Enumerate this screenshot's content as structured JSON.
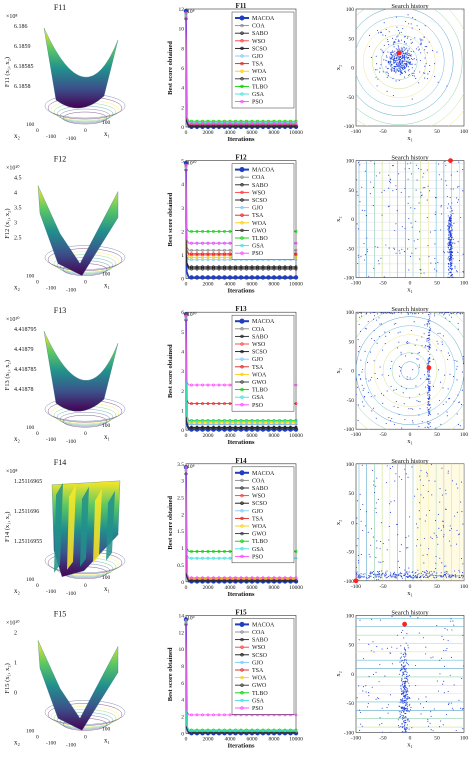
{
  "figure": {
    "rows": [
      {
        "surface": {
          "title": "F11",
          "exponent": "×10⁸",
          "zlabel": "F11 (x₁, x₂)",
          "zticks": [
            "6.186",
            "6.1859",
            "6.18585",
            "6.1858"
          ],
          "x2label": "x₂",
          "x1label": "x₁",
          "xticks_left": [
            "100",
            "0",
            "-100"
          ],
          "xticks_right": [
            "-100",
            "0",
            "100"
          ],
          "style": "bowl"
        },
        "convergence": {
          "title": "F11",
          "exponent": "×10⁸",
          "ylabel": "Best score obtained",
          "xlabel": "Iterations",
          "ymax": 12,
          "yticks": [
            "12",
            "10",
            "8",
            "6",
            "4",
            "2",
            "0"
          ],
          "xticks": [
            "0",
            "2000",
            "4000",
            "6000",
            "8000",
            "10000"
          ]
        },
        "search": {
          "title": "Search history",
          "x1label": "x₁",
          "x2label": "x₂",
          "xticks": [
            "-100",
            "-50",
            "0",
            "50",
            "100"
          ],
          "yticks": [
            "100",
            "50",
            "0",
            "-50",
            "-100"
          ],
          "style": "blob",
          "best": [
            -20,
            25
          ]
        }
      },
      {
        "surface": {
          "title": "F12",
          "exponent": "×10¹⁰",
          "zlabel": "F12 (x₁, x₂)",
          "zticks": [
            "4.5",
            "4",
            "3.5",
            "3",
            "2.5"
          ],
          "x2label": "x₂",
          "x1label": "x₁",
          "xticks_left": [
            "100",
            "0",
            "-100"
          ],
          "xticks_right": [
            "-100",
            "0",
            "100"
          ],
          "style": "valley"
        },
        "convergence": {
          "title": "F12",
          "exponent": "×10¹⁰",
          "ylabel": "Best score obtained",
          "xlabel": "Iterations",
          "ymax": 5,
          "yticks": [
            "5",
            "4",
            "3",
            "2",
            "1",
            "0"
          ],
          "xticks": [
            "0",
            "2000",
            "4000",
            "6000",
            "8000",
            "10000"
          ]
        },
        "search": {
          "title": "Search history",
          "x1label": "x₁",
          "x2label": "x₂",
          "xticks": [
            "-100",
            "-50",
            "0",
            "50",
            "100"
          ],
          "yticks": [
            "100",
            "50",
            "0",
            "-50",
            "-100"
          ],
          "style": "vertical",
          "best": [
            75,
            100
          ]
        }
      },
      {
        "surface": {
          "title": "F13",
          "exponent": "×10¹⁰",
          "zlabel": "F13 (x₁, x₂)",
          "zticks": [
            "4.418795",
            "4.41879",
            "4.418785",
            "4.41878"
          ],
          "x2label": "x₂",
          "x1label": "x₁",
          "xticks_left": [
            "100",
            "0",
            "-100"
          ],
          "xticks_right": [
            "-100",
            "0",
            "100"
          ],
          "style": "bowl"
        },
        "convergence": {
          "title": "F13",
          "exponent": "×10¹⁰",
          "ylabel": "Best score obtained",
          "xlabel": "Iterations",
          "ymax": 6,
          "yticks": [
            "6",
            "5",
            "4",
            "3",
            "2",
            "1",
            "0"
          ],
          "xticks": [
            "0",
            "2000",
            "4000",
            "6000",
            "8000",
            "10000"
          ]
        },
        "search": {
          "title": "Search history",
          "x1label": "x₁",
          "x2label": "x₂",
          "xticks": [
            "-100",
            "-50",
            "0",
            "50",
            "100"
          ],
          "yticks": [
            "100",
            "50",
            "0",
            "-50",
            "-100"
          ],
          "style": "cross",
          "best": [
            35,
            5
          ]
        }
      },
      {
        "surface": {
          "title": "F14",
          "exponent": "×10⁸",
          "zlabel": "F14 (x₁, x₂)",
          "zticks": [
            "1.25116965",
            "1.2511696",
            "1.25116955"
          ],
          "x2label": "x₂",
          "x1label": "x₁",
          "xticks_left": [
            "100",
            "0",
            "-100"
          ],
          "xticks_right": [
            "-100",
            "0",
            "100"
          ],
          "style": "ridges"
        },
        "convergence": {
          "title": "F14",
          "exponent": "×10⁸",
          "ylabel": "Best score obtained",
          "xlabel": "Iterations",
          "ymax": 3.5,
          "yticks": [
            "3.5",
            "3",
            "2.5",
            "2",
            "1.5",
            "1",
            "0.5",
            "0"
          ],
          "xticks": [
            "0",
            "2000",
            "4000",
            "6000",
            "8000",
            "10000"
          ]
        },
        "search": {
          "title": "Search history",
          "x1label": "x₁",
          "x2label": "x₂",
          "xticks": [
            "-100",
            "-50",
            "0",
            "50",
            "100"
          ],
          "yticks": [
            "100",
            "50",
            "0",
            "-50",
            "-100"
          ],
          "style": "bottom",
          "best": [
            -100,
            -100
          ]
        }
      },
      {
        "surface": {
          "title": "F15",
          "exponent": "×10¹⁰",
          "zlabel": "F15 (x₁, x₂)",
          "zticks": [
            "2",
            "1",
            "0"
          ],
          "x2label": "x₂",
          "x1label": "x₁",
          "xticks_left": [
            "100",
            "0",
            "-100"
          ],
          "xticks_right": [
            "-100",
            "0",
            "100"
          ],
          "style": "valley"
        },
        "convergence": {
          "title": "F15",
          "exponent": "×10⁹",
          "ylabel": "Best score obtained",
          "xlabel": "Iterations",
          "ymax": 14,
          "yticks": [
            "14",
            "12",
            "10",
            "8",
            "6",
            "4",
            "2",
            "0"
          ],
          "xticks": [
            "0",
            "2000",
            "4000",
            "6000",
            "8000",
            "10000"
          ]
        },
        "search": {
          "title": "Search history",
          "x1label": "x₁",
          "x2label": "x₂",
          "xticks": [
            "-100",
            "-50",
            "0",
            "50",
            "100"
          ],
          "yticks": [
            "100",
            "50",
            "0",
            "-50",
            "-100"
          ],
          "style": "column",
          "best": [
            -10,
            85
          ]
        }
      }
    ]
  },
  "legend": [
    {
      "name": "MACOA",
      "color": "#1f3fbf",
      "marker": "circle"
    },
    {
      "name": "COA",
      "color": "#888888",
      "marker": "x"
    },
    {
      "name": "SABO",
      "color": "#222222",
      "marker": "dot"
    },
    {
      "name": "WSO",
      "color": "#ff3b3b",
      "marker": "circle"
    },
    {
      "name": "SCSO",
      "color": "#111111",
      "marker": "x"
    },
    {
      "name": "GJO",
      "color": "#7cc8ff",
      "marker": "square"
    },
    {
      "name": "TSA",
      "color": "#e02020",
      "marker": "dot"
    },
    {
      "name": "WOA",
      "color": "#ffcc00",
      "marker": "dot"
    },
    {
      "name": "GWO",
      "color": "#333333",
      "marker": "dot"
    },
    {
      "name": "TLBO",
      "color": "#00d000",
      "marker": "diamond"
    },
    {
      "name": "GSA",
      "color": "#40e0e0",
      "marker": "dot"
    },
    {
      "name": "PSO",
      "color": "#ff44ff",
      "marker": "x"
    }
  ],
  "chart_data": [
    {
      "type": "line",
      "title": "F11",
      "xlabel": "Iterations",
      "ylabel": "Best score obtained",
      "ylim": [
        0,
        12
      ],
      "x": [
        0,
        10000
      ],
      "series": [
        {
          "name": "MACOA",
          "values": [
            11.8,
            0.02
          ]
        },
        {
          "name": "COA",
          "values": [
            11.5,
            0.3
          ]
        },
        {
          "name": "SABO",
          "values": [
            11.0,
            0.05
          ]
        },
        {
          "name": "WSO",
          "values": [
            11.2,
            0.15
          ]
        },
        {
          "name": "SCSO",
          "values": [
            11.0,
            0.1
          ]
        },
        {
          "name": "GJO",
          "values": [
            11.3,
            0.2
          ]
        },
        {
          "name": "TSA",
          "values": [
            11.6,
            0.2
          ]
        },
        {
          "name": "WOA",
          "values": [
            11.4,
            0.5
          ]
        },
        {
          "name": "GWO",
          "values": [
            11.0,
            0.1
          ]
        },
        {
          "name": "TLBO",
          "values": [
            11.5,
            0.6
          ]
        },
        {
          "name": "GSA",
          "values": [
            11.4,
            0.45
          ]
        },
        {
          "name": "PSO",
          "values": [
            11.6,
            0.35
          ]
        }
      ]
    },
    {
      "type": "line",
      "title": "F12",
      "xlabel": "Iterations",
      "ylabel": "Best score obtained",
      "ylim": [
        0,
        5
      ],
      "x": [
        0,
        10000
      ],
      "series": [
        {
          "name": "MACOA",
          "values": [
            4.9,
            0.05
          ]
        },
        {
          "name": "COA",
          "values": [
            4.8,
            1.2
          ]
        },
        {
          "name": "SABO",
          "values": [
            4.7,
            0.5
          ]
        },
        {
          "name": "WSO",
          "values": [
            4.8,
            1.0
          ]
        },
        {
          "name": "SCSO",
          "values": [
            4.6,
            0.45
          ]
        },
        {
          "name": "GJO",
          "values": [
            4.7,
            0.8
          ]
        },
        {
          "name": "TSA",
          "values": [
            4.8,
            1.05
          ]
        },
        {
          "name": "WOA",
          "values": [
            4.7,
            0.9
          ]
        },
        {
          "name": "GWO",
          "values": [
            4.6,
            0.4
          ]
        },
        {
          "name": "TLBO",
          "values": [
            4.8,
            2.0
          ]
        },
        {
          "name": "GSA",
          "values": [
            4.7,
            1.5
          ]
        },
        {
          "name": "PSO",
          "values": [
            4.8,
            1.5
          ]
        }
      ]
    },
    {
      "type": "line",
      "title": "F13",
      "xlabel": "Iterations",
      "ylabel": "Best score obtained",
      "ylim": [
        0,
        6
      ],
      "x": [
        0,
        10000
      ],
      "series": [
        {
          "name": "MACOA",
          "values": [
            5.9,
            0.03
          ]
        },
        {
          "name": "COA",
          "values": [
            5.8,
            0.3
          ]
        },
        {
          "name": "SABO",
          "values": [
            5.7,
            0.1
          ]
        },
        {
          "name": "WSO",
          "values": [
            5.8,
            0.3
          ]
        },
        {
          "name": "SCSO",
          "values": [
            5.6,
            0.15
          ]
        },
        {
          "name": "GJO",
          "values": [
            5.7,
            0.3
          ]
        },
        {
          "name": "TSA",
          "values": [
            5.9,
            1.35
          ]
        },
        {
          "name": "WOA",
          "values": [
            5.8,
            0.4
          ]
        },
        {
          "name": "GWO",
          "values": [
            5.6,
            0.12
          ]
        },
        {
          "name": "TLBO",
          "values": [
            5.8,
            0.5
          ]
        },
        {
          "name": "GSA",
          "values": [
            5.7,
            0.45
          ]
        },
        {
          "name": "PSO",
          "values": [
            5.8,
            2.3
          ]
        }
      ]
    },
    {
      "type": "line",
      "title": "F14",
      "xlabel": "Iterations",
      "ylabel": "Best score obtained",
      "ylim": [
        0,
        3.5
      ],
      "x": [
        0,
        10000
      ],
      "series": [
        {
          "name": "MACOA",
          "values": [
            3.4,
            0.01
          ]
        },
        {
          "name": "COA",
          "values": [
            3.3,
            0.1
          ]
        },
        {
          "name": "SABO",
          "values": [
            3.2,
            0.03
          ]
        },
        {
          "name": "WSO",
          "values": [
            3.3,
            0.1
          ]
        },
        {
          "name": "SCSO",
          "values": [
            3.2,
            0.05
          ]
        },
        {
          "name": "GJO",
          "values": [
            3.3,
            0.08
          ]
        },
        {
          "name": "TSA",
          "values": [
            3.4,
            0.1
          ]
        },
        {
          "name": "WOA",
          "values": [
            3.3,
            0.1
          ]
        },
        {
          "name": "GWO",
          "values": [
            3.2,
            0.04
          ]
        },
        {
          "name": "TLBO",
          "values": [
            3.4,
            0.9
          ]
        },
        {
          "name": "GSA",
          "values": [
            3.3,
            0.7
          ]
        },
        {
          "name": "PSO",
          "values": [
            3.4,
            0.12
          ]
        }
      ]
    },
    {
      "type": "line",
      "title": "F15",
      "xlabel": "Iterations",
      "ylabel": "Best score obtained",
      "ylim": [
        0,
        14
      ],
      "x": [
        0,
        10000
      ],
      "series": [
        {
          "name": "MACOA",
          "values": [
            13.5,
            0.02
          ]
        },
        {
          "name": "COA",
          "values": [
            13.2,
            0.3
          ]
        },
        {
          "name": "SABO",
          "values": [
            13.0,
            0.1
          ]
        },
        {
          "name": "WSO",
          "values": [
            13.2,
            0.2
          ]
        },
        {
          "name": "SCSO",
          "values": [
            12.9,
            0.1
          ]
        },
        {
          "name": "GJO",
          "values": [
            13.1,
            0.2
          ]
        },
        {
          "name": "TSA",
          "values": [
            13.4,
            0.25
          ]
        },
        {
          "name": "WOA",
          "values": [
            13.2,
            0.3
          ]
        },
        {
          "name": "GWO",
          "values": [
            12.9,
            0.1
          ]
        },
        {
          "name": "TLBO",
          "values": [
            13.3,
            0.4
          ]
        },
        {
          "name": "GSA",
          "values": [
            13.2,
            0.3
          ]
        },
        {
          "name": "PSO",
          "values": [
            13.4,
            2.2
          ]
        }
      ]
    }
  ]
}
